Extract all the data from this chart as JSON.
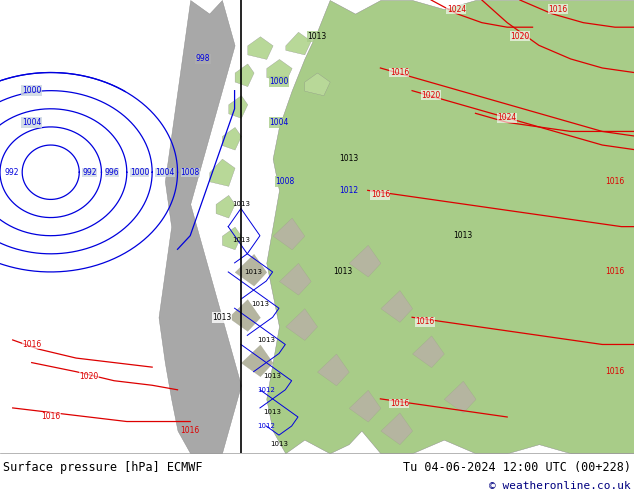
{
  "title_left": "Surface pressure [hPa] ECMWF",
  "title_right": "Tu 04-06-2024 12:00 UTC (00+228)",
  "copyright": "© weatheronline.co.uk",
  "ocean_color": "#c8d4e0",
  "land_green": "#a8cc88",
  "land_green2": "#b8d898",
  "land_grey": "#b0b0b0",
  "footer_bg": "#ffffff",
  "blue_contour": "#0000dd",
  "red_contour": "#dd0000",
  "black_contour": "#000000",
  "text_color": "#000000",
  "fig_width": 6.34,
  "fig_height": 4.9,
  "dpi": 100
}
